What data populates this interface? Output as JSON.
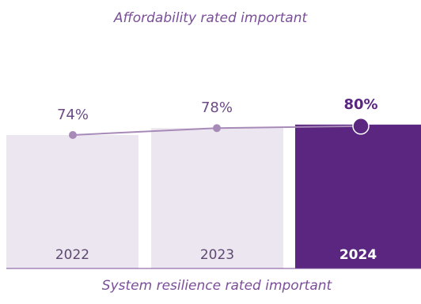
{
  "chart_data": {
    "type": "bar",
    "title": "Affordability rated important",
    "subtitle": "System resilience rated important",
    "categories": [
      "2022",
      "2023",
      "2024"
    ],
    "series": [
      {
        "values": [
          74,
          78,
          80
        ],
        "labels": [
          "74%",
          "78%",
          "80%"
        ]
      }
    ],
    "highlight_index": 2,
    "ylim": [
      0,
      100
    ],
    "grid": false,
    "colors": {
      "bar_default": "#ece6f0",
      "bar_highlight": "#5b2680",
      "line": "#a78ab8",
      "title": "#7a4e99",
      "label": "#6b4a86",
      "highlight_label": "#5b2680",
      "category_label": "#5e4a70",
      "category_highlight_label": "#ffffff",
      "axis": "#7a4e99"
    }
  }
}
